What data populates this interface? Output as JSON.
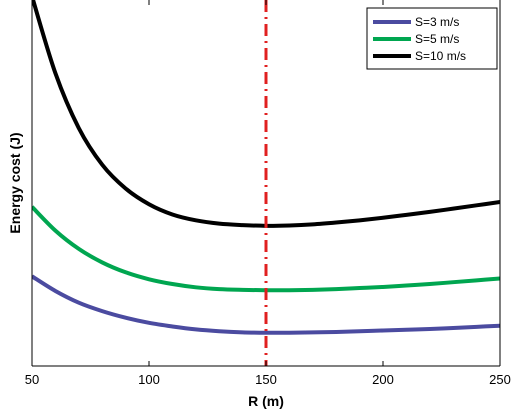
{
  "chart_data": {
    "type": "line",
    "title": "",
    "xlabel": "R (m)",
    "ylabel": "Energy cost (J)",
    "xlim": [
      50,
      250
    ],
    "x_ticks": [
      50,
      100,
      150,
      200,
      250
    ],
    "x_tick_labels": [
      "50",
      "100",
      "150",
      "200",
      "250"
    ],
    "ylim": [
      0,
      1
    ],
    "y_ticks_shown": false,
    "grid": false,
    "legend_position": "top-right",
    "x": [
      50,
      60,
      70,
      80,
      90,
      100,
      110,
      120,
      130,
      140,
      150,
      160,
      170,
      180,
      190,
      200,
      210,
      220,
      230,
      240,
      250
    ],
    "series": [
      {
        "name": "S=3 m/s",
        "color": "#4B4BA0",
        "values": [
          0.245,
          0.205,
          0.173,
          0.15,
          0.132,
          0.118,
          0.108,
          0.1,
          0.095,
          0.092,
          0.091,
          0.091,
          0.092,
          0.093,
          0.095,
          0.097,
          0.099,
          0.101,
          0.104,
          0.107,
          0.11
        ]
      },
      {
        "name": "S=5 m/s",
        "color": "#00A650",
        "values": [
          0.435,
          0.37,
          0.32,
          0.283,
          0.256,
          0.237,
          0.224,
          0.215,
          0.21,
          0.208,
          0.207,
          0.207,
          0.208,
          0.21,
          0.213,
          0.216,
          0.22,
          0.224,
          0.229,
          0.234,
          0.239
        ]
      },
      {
        "name": "S=10 m/s",
        "color": "#000000",
        "values": [
          1.01,
          0.8,
          0.65,
          0.55,
          0.485,
          0.442,
          0.414,
          0.398,
          0.389,
          0.385,
          0.383,
          0.384,
          0.387,
          0.392,
          0.398,
          0.405,
          0.413,
          0.421,
          0.43,
          0.439,
          0.448
        ]
      }
    ],
    "reference_line": {
      "x": 150,
      "color": "#E02020",
      "style": "dash-dot"
    }
  }
}
